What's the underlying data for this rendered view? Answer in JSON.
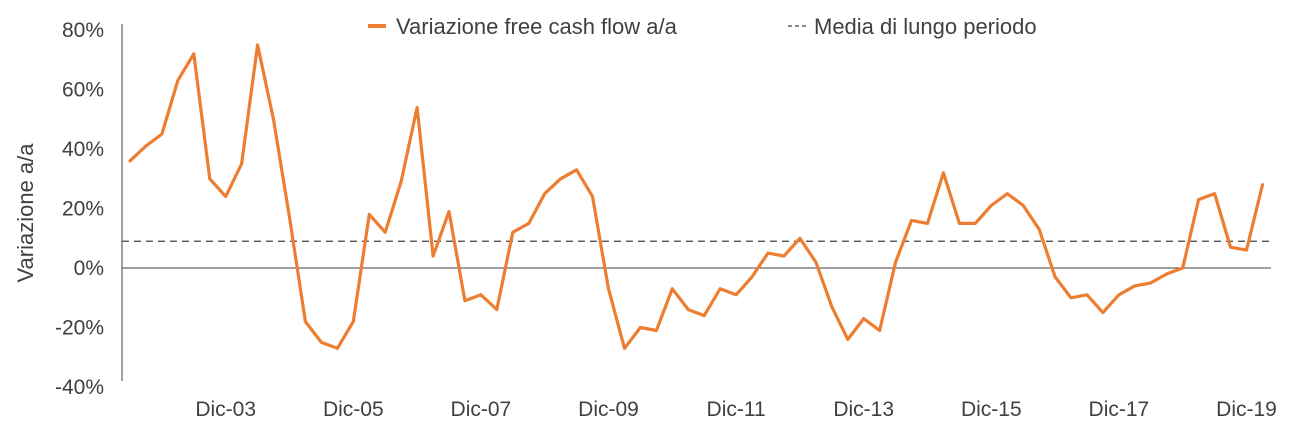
{
  "chart_data": {
    "type": "line",
    "title": "",
    "xlabel": "",
    "ylabel": "Variazione a/a",
    "ylim": [
      -40,
      80
    ],
    "yticks": [
      -40,
      -20,
      0,
      20,
      40,
      60,
      80
    ],
    "ytick_labels": [
      "-40%",
      "-20%",
      "0%",
      "20%",
      "40%",
      "60%",
      "80%"
    ],
    "xtick_labels": [
      "Dic-03",
      "Dic-05",
      "Dic-07",
      "Dic-09",
      "Dic-11",
      "Dic-13",
      "Dic-15",
      "Dic-17",
      "Dic-19"
    ],
    "xtick_index": [
      6,
      14,
      22,
      30,
      38,
      46,
      54,
      62,
      70
    ],
    "grid": false,
    "legend_position": "top",
    "series": [
      {
        "name": "Variazione free cash flow a/a",
        "color": "#ED7D31",
        "style": "solid",
        "values": [
          36,
          41,
          45,
          63,
          72,
          30,
          24,
          35,
          75,
          50,
          17,
          -18,
          -25,
          -27,
          -18,
          18,
          12,
          29,
          54,
          4,
          19,
          -11,
          -9,
          -14,
          12,
          15,
          25,
          30,
          33,
          24,
          -7,
          -27,
          -20,
          -21,
          -7,
          -14,
          -16,
          -7,
          -9,
          -3,
          5,
          4,
          10,
          2,
          -13,
          -24,
          -17,
          -21,
          2,
          16,
          15,
          32,
          15,
          15,
          21,
          25,
          21,
          13,
          -3,
          -10,
          -9,
          -15,
          -9,
          -6,
          -5,
          -2,
          0,
          23,
          25,
          7,
          6,
          28
        ]
      },
      {
        "name": "Media di lungo periodo",
        "color": "#404040",
        "style": "dashed",
        "value": 9
      }
    ]
  }
}
